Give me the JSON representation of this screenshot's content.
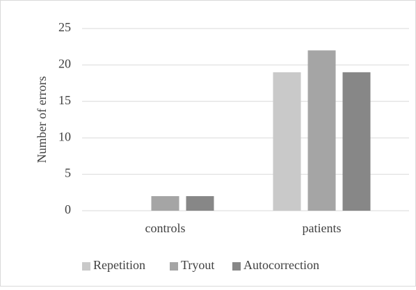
{
  "chart_data": {
    "type": "bar",
    "ylabel": "Number of errors",
    "categories": [
      "controls",
      "patients"
    ],
    "series": [
      {
        "name": "Repetition",
        "color": "#c9c9c9",
        "values": [
          0,
          19
        ]
      },
      {
        "name": "Tryout",
        "color": "#a5a5a5",
        "values": [
          2,
          22
        ]
      },
      {
        "name": "Autocorrection",
        "color": "#878787",
        "values": [
          2,
          19
        ]
      }
    ],
    "ylim": [
      0,
      25
    ],
    "yticks": [
      0,
      5,
      10,
      15,
      20,
      25
    ],
    "grid": true,
    "legend": "bottom"
  }
}
